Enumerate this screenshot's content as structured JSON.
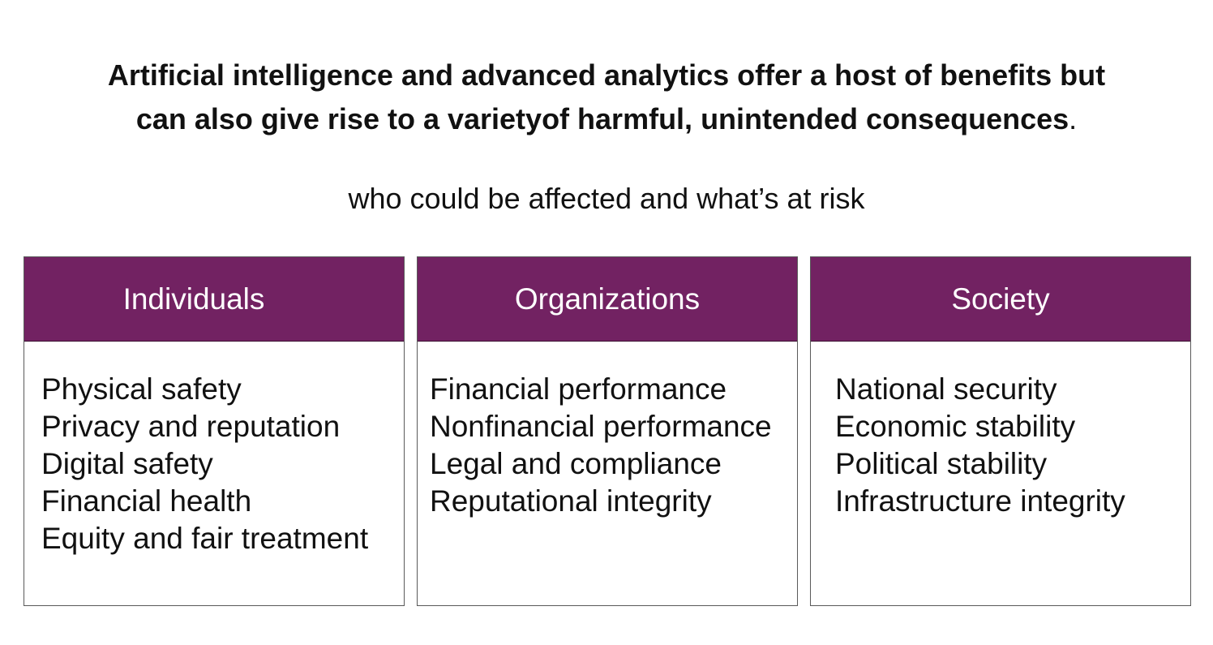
{
  "headline": {
    "line1": "Artificial intelligence and advanced analytics offer a host of benefits but",
    "line2": "can also give rise to a varietyof harmful, unintended consequences",
    "period": "."
  },
  "subtitle": "who could be affected and what’s at risk",
  "colors": {
    "header_fill": "#722262",
    "header_text": "#ffffff",
    "border": "#5a5a5a"
  },
  "categories": [
    {
      "title": "Individuals",
      "items": [
        "Physical safety",
        "Privacy and reputation",
        "Digital safety",
        "Financial health",
        "Equity and fair treatment"
      ]
    },
    {
      "title": "Organizations",
      "items": [
        "Financial performance",
        "Nonfinancial performance",
        "Legal and compliance",
        "Reputational integrity"
      ]
    },
    {
      "title": "Society",
      "items": [
        "National security",
        "Economic stability",
        "Political stability",
        "Infrastructure integrity"
      ]
    }
  ]
}
